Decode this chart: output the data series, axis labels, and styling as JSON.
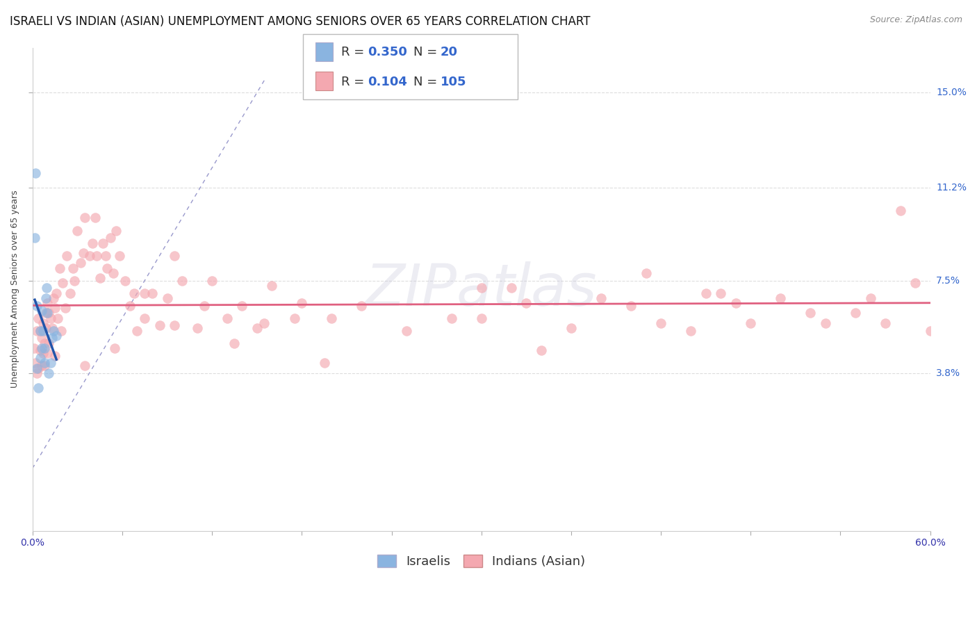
{
  "title": "ISRAELI VS INDIAN (ASIAN) UNEMPLOYMENT AMONG SENIORS OVER 65 YEARS CORRELATION CHART",
  "source": "Source: ZipAtlas.com",
  "ylabel": "Unemployment Among Seniors over 65 years",
  "ytick_vals": [
    0.038,
    0.075,
    0.112,
    0.15
  ],
  "ytick_labels": [
    "3.8%",
    "7.5%",
    "11.2%",
    "15.0%"
  ],
  "xlim": [
    0.0,
    0.6
  ],
  "ylim": [
    -0.025,
    0.168
  ],
  "legend_israeli": {
    "R": 0.35,
    "N": 20
  },
  "legend_indian": {
    "R": 0.104,
    "N": 105
  },
  "israeli_color": "#8ab4e0",
  "indian_color": "#f4a8b0",
  "trend_israeli_color": "#2255aa",
  "trend_indian_color": "#e06080",
  "diagonal_color": "#9999cc",
  "background_color": "#ffffff",
  "grid_color": "#dddddd",
  "title_fontsize": 12,
  "label_fontsize": 9,
  "tick_fontsize": 10,
  "legend_fontsize": 13,
  "scatter_size": 100,
  "scatter_alpha": 0.65,
  "israeli_x": [
    0.0015,
    0.002,
    0.003,
    0.004,
    0.005,
    0.006,
    0.006,
    0.007,
    0.008,
    0.009,
    0.0095,
    0.011,
    0.012,
    0.014,
    0.003,
    0.005,
    0.008,
    0.01,
    0.013,
    0.016
  ],
  "israeli_y": [
    0.092,
    0.118,
    0.065,
    0.032,
    0.055,
    0.048,
    0.063,
    0.055,
    0.042,
    0.068,
    0.072,
    0.038,
    0.042,
    0.055,
    0.04,
    0.044,
    0.048,
    0.062,
    0.052,
    0.053
  ],
  "indian_x": [
    0.001,
    0.002,
    0.003,
    0.003,
    0.004,
    0.004,
    0.005,
    0.005,
    0.006,
    0.006,
    0.007,
    0.007,
    0.008,
    0.008,
    0.009,
    0.009,
    0.01,
    0.01,
    0.011,
    0.011,
    0.012,
    0.013,
    0.014,
    0.015,
    0.015,
    0.016,
    0.017,
    0.018,
    0.019,
    0.02,
    0.022,
    0.023,
    0.025,
    0.027,
    0.028,
    0.03,
    0.032,
    0.034,
    0.035,
    0.038,
    0.04,
    0.042,
    0.043,
    0.045,
    0.047,
    0.049,
    0.05,
    0.052,
    0.054,
    0.056,
    0.058,
    0.062,
    0.065,
    0.068,
    0.07,
    0.075,
    0.08,
    0.085,
    0.09,
    0.095,
    0.1,
    0.11,
    0.12,
    0.13,
    0.14,
    0.15,
    0.16,
    0.18,
    0.2,
    0.22,
    0.25,
    0.28,
    0.3,
    0.33,
    0.36,
    0.38,
    0.4,
    0.42,
    0.45,
    0.47,
    0.48,
    0.5,
    0.52,
    0.53,
    0.55,
    0.56,
    0.57,
    0.58,
    0.59,
    0.6,
    0.035,
    0.055,
    0.075,
    0.095,
    0.115,
    0.135,
    0.155,
    0.175,
    0.195,
    0.3,
    0.32,
    0.34,
    0.41,
    0.44,
    0.46
  ],
  "indian_y": [
    0.048,
    0.042,
    0.038,
    0.055,
    0.06,
    0.04,
    0.055,
    0.047,
    0.052,
    0.041,
    0.058,
    0.046,
    0.05,
    0.041,
    0.056,
    0.062,
    0.046,
    0.066,
    0.05,
    0.062,
    0.06,
    0.056,
    0.068,
    0.064,
    0.045,
    0.07,
    0.06,
    0.08,
    0.055,
    0.074,
    0.064,
    0.085,
    0.07,
    0.08,
    0.075,
    0.095,
    0.082,
    0.086,
    0.1,
    0.085,
    0.09,
    0.1,
    0.085,
    0.076,
    0.09,
    0.085,
    0.08,
    0.092,
    0.078,
    0.095,
    0.085,
    0.075,
    0.065,
    0.07,
    0.055,
    0.06,
    0.07,
    0.057,
    0.068,
    0.085,
    0.075,
    0.056,
    0.075,
    0.06,
    0.065,
    0.056,
    0.073,
    0.066,
    0.06,
    0.065,
    0.055,
    0.06,
    0.072,
    0.066,
    0.056,
    0.068,
    0.065,
    0.058,
    0.07,
    0.066,
    0.058,
    0.068,
    0.062,
    0.058,
    0.062,
    0.068,
    0.058,
    0.103,
    0.074,
    0.055,
    0.041,
    0.048,
    0.07,
    0.057,
    0.065,
    0.05,
    0.058,
    0.06,
    0.042,
    0.06,
    0.072,
    0.047,
    0.078,
    0.055,
    0.07
  ]
}
